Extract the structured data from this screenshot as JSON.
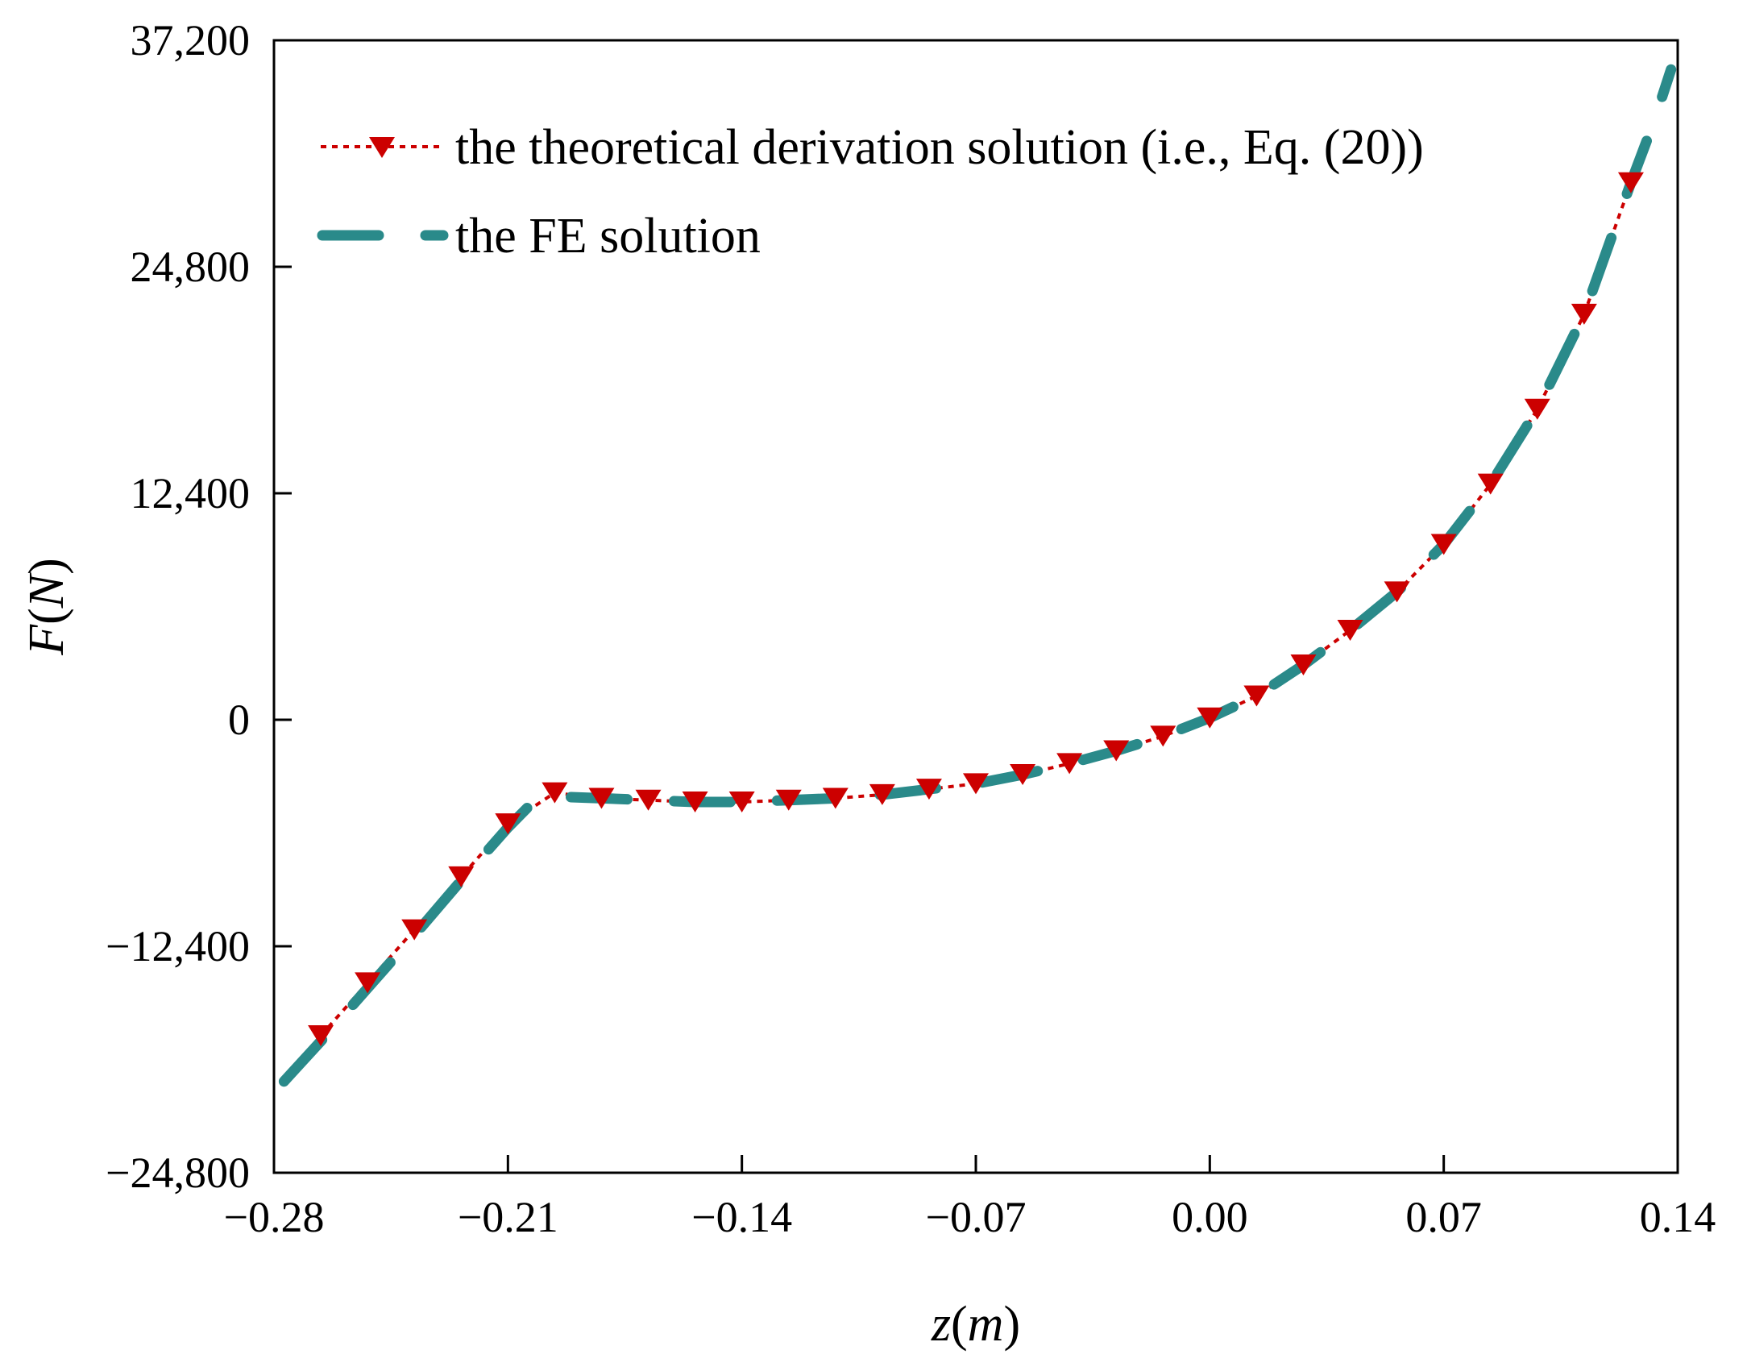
{
  "chart_data": {
    "type": "line",
    "title": "",
    "xlabel_parts": [
      "z",
      "(",
      "m",
      ")"
    ],
    "ylabel_parts": [
      "F",
      "(",
      "N",
      ")"
    ],
    "xlim": [
      -0.28,
      0.14
    ],
    "ylim": [
      -24800,
      37200
    ],
    "xticks": [
      -0.28,
      -0.21,
      -0.14,
      -0.07,
      0.0,
      0.07,
      0.14
    ],
    "xtick_labels": [
      "−0.28",
      "−0.21",
      "−0.14",
      "−0.07",
      "0.00",
      "0.07",
      "0.14"
    ],
    "yticks": [
      -24800,
      -12400,
      0,
      12400,
      24800,
      37200
    ],
    "ytick_labels": [
      "−24,800",
      "−12,400",
      "0",
      "12,400",
      "24,800",
      "37,200"
    ],
    "legend_position": "top-left",
    "series": [
      {
        "name": "the theoretical derivation solution (i.e., Eq. (20))",
        "color": "#cc0000",
        "style": "dotted-with-down-triangles",
        "x": [
          -0.266,
          -0.252,
          -0.238,
          -0.224,
          -0.21,
          -0.196,
          -0.182,
          -0.168,
          -0.154,
          -0.14,
          -0.126,
          -0.112,
          -0.098,
          -0.084,
          -0.07,
          -0.056,
          -0.042,
          -0.028,
          -0.014,
          0.0,
          0.014,
          0.028,
          0.042,
          0.056,
          0.07,
          0.084,
          0.098,
          0.112,
          0.126
        ],
        "y": [
          -17300,
          -14400,
          -11500,
          -8600,
          -5700,
          -4000,
          -4300,
          -4400,
          -4500,
          -4500,
          -4400,
          -4300,
          -4100,
          -3800,
          -3500,
          -3000,
          -2400,
          -1700,
          -900,
          100,
          1300,
          3000,
          4900,
          7000,
          9600,
          12900,
          17000,
          22200,
          29400
        ]
      },
      {
        "name": "the FE solution",
        "color": "#2a8a8a",
        "style": "dashed",
        "x": [
          -0.277,
          -0.266,
          -0.252,
          -0.238,
          -0.224,
          -0.21,
          -0.203,
          -0.196,
          -0.182,
          -0.168,
          -0.154,
          -0.14,
          -0.126,
          -0.112,
          -0.098,
          -0.084,
          -0.07,
          -0.056,
          -0.042,
          -0.028,
          -0.014,
          0.0,
          0.014,
          0.028,
          0.042,
          0.056,
          0.07,
          0.084,
          0.098,
          0.112,
          0.126,
          0.133,
          0.138
        ],
        "y": [
          -19800,
          -17600,
          -14700,
          -11800,
          -8800,
          -5900,
          -4600,
          -4200,
          -4300,
          -4400,
          -4500,
          -4500,
          -4400,
          -4300,
          -4100,
          -3800,
          -3500,
          -3000,
          -2400,
          -1700,
          -900,
          100,
          1300,
          3000,
          4900,
          7000,
          9600,
          12900,
          17000,
          22200,
          29400,
          32800,
          35600
        ]
      }
    ]
  }
}
